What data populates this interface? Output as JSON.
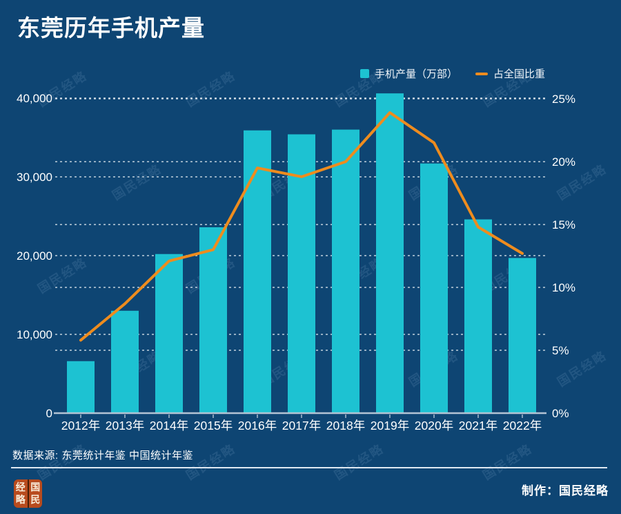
{
  "page_title": "东莞历年手机产量",
  "legend": {
    "items": [
      {
        "label": "手机产量（万部）",
        "swatch": "square"
      },
      {
        "label": "占全国比重",
        "swatch": "dash"
      }
    ]
  },
  "colors": {
    "background": "#0e4573",
    "bar": "#1dc2d2",
    "line": "#ee8c1e",
    "grid": "rgba(255,255,255,0.75)",
    "axis_line": "#b3c4d4",
    "text": "#ffffff",
    "logo_red": "#b84b1e"
  },
  "chart_data": {
    "type": "bar",
    "title": "东莞历年手机产量",
    "categories": [
      "2012年",
      "2013年",
      "2014年",
      "2015年",
      "2016年",
      "2017年",
      "2018年",
      "2019年",
      "2020年",
      "2021年",
      "2022年"
    ],
    "series": [
      {
        "name": "手机产量（万部）",
        "type": "bar",
        "axis": "left",
        "values": [
          6600,
          13000,
          20200,
          23600,
          35900,
          35400,
          36000,
          40600,
          31700,
          24600,
          19700
        ]
      },
      {
        "name": "占全国比重",
        "type": "line",
        "axis": "right",
        "values": [
          5.8,
          8.7,
          12.1,
          13,
          19.5,
          18.8,
          20,
          23.9,
          21.5,
          14.8,
          12.7
        ]
      }
    ],
    "left_axis": {
      "range": [
        0,
        40000
      ],
      "ticks": [
        0,
        10000,
        20000,
        30000,
        40000
      ],
      "tick_labels": [
        "0",
        "10,000",
        "20,000",
        "30,000",
        "40,000"
      ]
    },
    "right_axis": {
      "range": [
        0,
        25
      ],
      "ticks": [
        0,
        5,
        10,
        15,
        20,
        25
      ],
      "tick_labels": [
        "0%",
        "5%",
        "10%",
        "15%",
        "20%",
        "25%"
      ]
    },
    "grid": true,
    "legend_position": "top-right"
  },
  "watermark": {
    "text": "国民经略"
  },
  "footer": {
    "source": "数据来源: 东莞统计年鉴 中国统计年鉴",
    "credit": "制作：国民经略"
  },
  "logo": {
    "chars": {
      "tl": "经",
      "tr": "国",
      "bl": "略",
      "br": "民"
    }
  }
}
